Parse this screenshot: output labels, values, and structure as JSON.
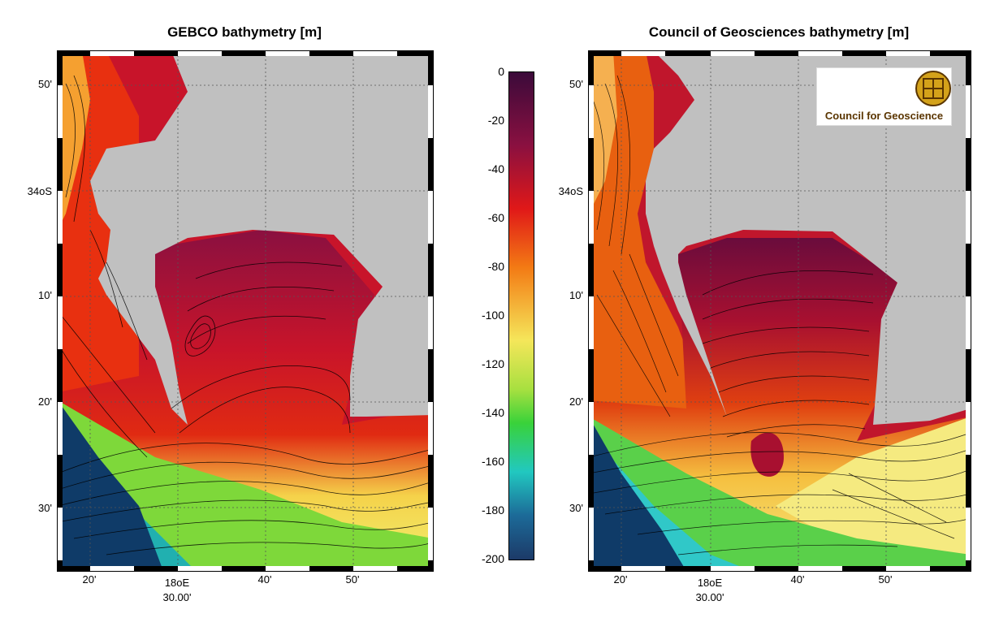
{
  "left_map": {
    "title": "GEBCO bathymetry [m]",
    "y_labels": [
      "50'",
      "34oS",
      "10'",
      "20'",
      "30'"
    ],
    "x_labels": [
      "20'",
      "18oE",
      "40'",
      "50'"
    ],
    "x_sub_label": "30.00'"
  },
  "right_map": {
    "title": "Council of Geosciences bathymetry [m]",
    "y_labels": [
      "50'",
      "34oS",
      "10'",
      "20'",
      "30'"
    ],
    "x_labels": [
      "20'",
      "18oE",
      "40'",
      "50'"
    ],
    "x_sub_label": "30.00'",
    "logo_text": "Council for Geoscience"
  },
  "colorbar": {
    "ticks": [
      "0",
      "-20",
      "-40",
      "-60",
      "-80",
      "-100",
      "-120",
      "-140",
      "-160",
      "-180",
      "-200"
    ],
    "colors": [
      "#3b0a3a",
      "#8a1040",
      "#e01818",
      "#f37a14",
      "#f5e65a",
      "#39d23a",
      "#21c8c0",
      "#1c4a78"
    ]
  },
  "land_color": "#c0c0c0",
  "deep_color": "#0f3b68"
}
